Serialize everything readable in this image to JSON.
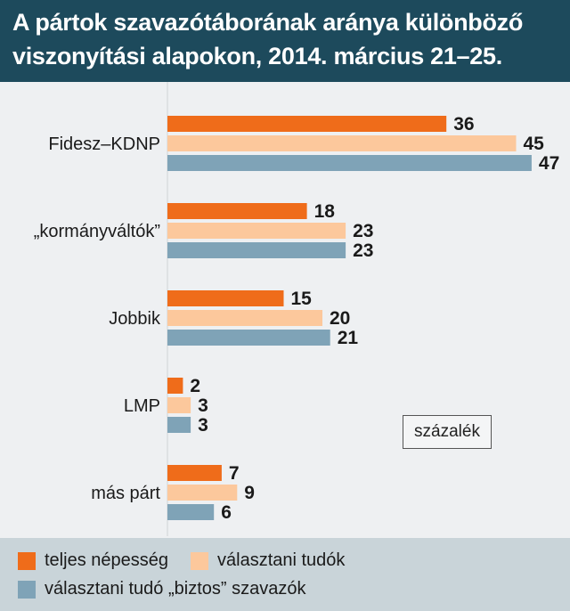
{
  "header": {
    "title": "A pártok szavazótáborának aránya különböző\nviszonyítási alapokon, 2014. március 21–25."
  },
  "unit_label": "százalék",
  "colors": {
    "teljes": "#ef6c1a",
    "valasztani": "#fcc89c",
    "biztos": "#7fa3b7",
    "header_bg": "#1d4a5c"
  },
  "legend": [
    {
      "label": "teljes népesség",
      "color": "#ef6c1a"
    },
    {
      "label": "választani tudók",
      "color": "#fcc89c"
    },
    {
      "label": "választani tudó „biztos” szavazók",
      "color": "#7fa3b7"
    }
  ],
  "chart_data": {
    "type": "bar",
    "orientation": "horizontal",
    "title": "A pártok szavazótáborának aránya különböző viszonyítási alapokon, 2014. március 21–25.",
    "unit": "százalék",
    "categories": [
      "Fidesz–KDNP",
      "„kormányváltók”",
      "Jobbik",
      "LMP",
      "más párt"
    ],
    "series": [
      {
        "name": "teljes népesség",
        "values": [
          36,
          18,
          15,
          2,
          7
        ]
      },
      {
        "name": "választani tudók",
        "values": [
          45,
          23,
          20,
          3,
          9
        ]
      },
      {
        "name": "választani tudó „biztos” szavazók",
        "values": [
          47,
          23,
          21,
          3,
          6
        ]
      }
    ],
    "legend_position": "bottom",
    "grid": false
  }
}
